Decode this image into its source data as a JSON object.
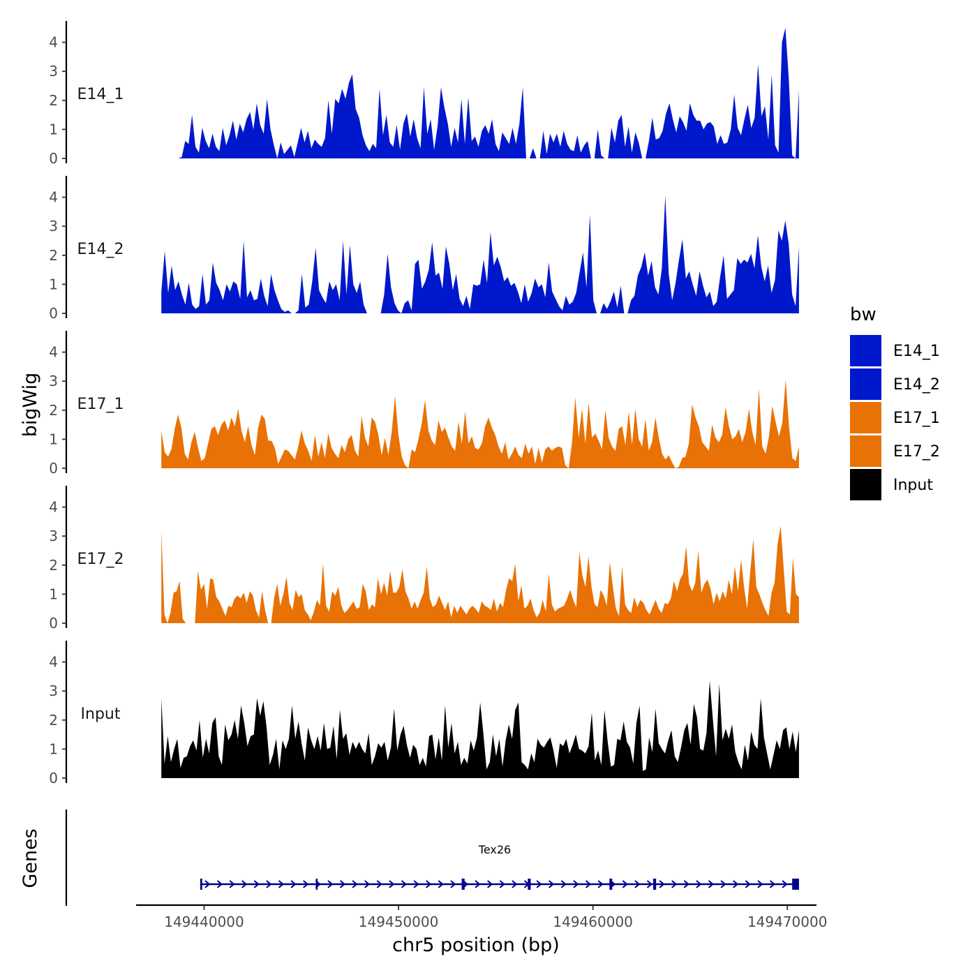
{
  "chart_data": {
    "type": "area",
    "title": "",
    "xlabel": "chr5 position (bp)",
    "ylabel": "bigWig",
    "genes_label": "Genes",
    "xlim": [
      149436500,
      149471500
    ],
    "data_range": [
      149437800,
      149470600
    ],
    "ylim": [
      0,
      4.6
    ],
    "x_ticks": [
      149440000,
      149450000,
      149460000,
      149470000
    ],
    "x_tick_labels": [
      "149440000",
      "149450000",
      "149460000",
      "149470000"
    ],
    "y_ticks": [
      0,
      1,
      2,
      3,
      4
    ],
    "y_tick_labels": [
      "0",
      "1",
      "2",
      "3",
      "4"
    ],
    "grid": false,
    "legend": {
      "title": "bw",
      "position": "right",
      "items": [
        {
          "label": "E14_1",
          "color": "#0018CC"
        },
        {
          "label": "E14_2",
          "color": "#0018CC"
        },
        {
          "label": "E17_1",
          "color": "#E87205"
        },
        {
          "label": "E17_2",
          "color": "#E87205"
        },
        {
          "label": "Input",
          "color": "#000000"
        }
      ]
    },
    "series": [
      {
        "name": "E14_1",
        "color": "#0018CC",
        "values": [
          0,
          0,
          0,
          0,
          0,
          0,
          0.05,
          0.6,
          0.5,
          1.5,
          0.4,
          0.2,
          1.05,
          0.6,
          0.35,
          0.85,
          0.4,
          0.25,
          1.05,
          0.45,
          0.8,
          1.3,
          0.65,
          1.2,
          0.9,
          1.35,
          1.6,
          1.0,
          1.9,
          1.15,
          0.85,
          2.05,
          1.0,
          0.45,
          0,
          0.55,
          0.15,
          0.3,
          0.45,
          0.05,
          0.55,
          1.05,
          0.55,
          0.95,
          0.35,
          0.65,
          0.5,
          0.4,
          0.7,
          2.0,
          0.85,
          2.05,
          1.9,
          2.4,
          2.05,
          2.6,
          2.9,
          1.7,
          1.4,
          0.8,
          0.45,
          0.25,
          0.5,
          0.35,
          2.4,
          0.8,
          1.5,
          0.55,
          0.4,
          1.15,
          0.3,
          1.2,
          1.55,
          0.75,
          1.35,
          0.7,
          0.35,
          2.45,
          0.85,
          1.35,
          0.3,
          1.1,
          2.45,
          1.75,
          1.2,
          0.4,
          1.05,
          0.55,
          2.05,
          0.5,
          2.1,
          0.6,
          0.75,
          0.4,
          0.95,
          1.15,
          0.85,
          1.35,
          0.5,
          0.25,
          0.9,
          0.7,
          0.5,
          1.05,
          0.5,
          1.2,
          2.45,
          0,
          0,
          0.35,
          0,
          0,
          0.95,
          0.15,
          0.85,
          0.55,
          0.85,
          0.4,
          0.95,
          0.5,
          0.3,
          0.25,
          0.8,
          0.2,
          0.45,
          0.6,
          0,
          0,
          1.0,
          0.1,
          0,
          0,
          1.05,
          0.55,
          1.3,
          1.5,
          0.4,
          1.1,
          0.2,
          0.9,
          0.55,
          0,
          0,
          0.6,
          1.4,
          0.65,
          0.7,
          0.95,
          1.55,
          1.9,
          1.35,
          0.9,
          1.45,
          1.25,
          0.95,
          1.9,
          1.5,
          1.3,
          1.3,
          1.0,
          1.2,
          1.25,
          1.1,
          0.5,
          0.8,
          0.5,
          0.55,
          1.0,
          2.2,
          1.05,
          0.8,
          1.35,
          1.85,
          1.05,
          1.4,
          3.25,
          1.45,
          1.8,
          0.65,
          2.9,
          0.45,
          0.2,
          4.0,
          4.5,
          2.75,
          0.1,
          0,
          2.35
        ]
      },
      {
        "name": "E14_2",
        "color": "#0018CC",
        "values": [
          0.75,
          2.15,
          0.7,
          1.65,
          0.8,
          1.1,
          0.65,
          0.3,
          1.05,
          0.3,
          0.15,
          0.25,
          1.35,
          0.3,
          0.45,
          1.75,
          1.05,
          0.8,
          0.45,
          1.0,
          0.75,
          1.1,
          1.0,
          0.5,
          2.5,
          0.55,
          0.8,
          0.45,
          0.5,
          1.2,
          0.6,
          0.25,
          1.35,
          0.8,
          0.45,
          0.15,
          0.05,
          0.1,
          0,
          0,
          0.1,
          1.35,
          0.2,
          0.3,
          1.1,
          2.25,
          0.8,
          0.55,
          0.35,
          1.1,
          0.8,
          1.0,
          0.45,
          2.5,
          0.65,
          2.35,
          1.0,
          0.7,
          1.1,
          0.3,
          0,
          0,
          0,
          0,
          0,
          0.65,
          2.05,
          0.9,
          0.35,
          0.1,
          0,
          0.35,
          0.45,
          0.1,
          1.7,
          1.85,
          0.85,
          1.1,
          1.5,
          2.45,
          1.3,
          1.4,
          0.85,
          2.3,
          1.7,
          0.8,
          1.35,
          0.5,
          0.25,
          0.6,
          0.15,
          1.0,
          0.95,
          1.0,
          1.85,
          1.05,
          2.8,
          1.65,
          1.95,
          1.6,
          1.1,
          1.25,
          0.95,
          1.05,
          0.75,
          0.35,
          1.0,
          0.4,
          0.7,
          1.2,
          0.9,
          1.0,
          0.55,
          1.75,
          0.75,
          0.5,
          0.25,
          0.1,
          0.6,
          0.3,
          0.4,
          0.7,
          1.4,
          2.1,
          0.9,
          3.4,
          0.45,
          0,
          0,
          0.35,
          0.15,
          0.4,
          0.75,
          0.2,
          0.95,
          0,
          0,
          0.45,
          0.6,
          1.3,
          1.6,
          2.1,
          1.3,
          1.8,
          0.9,
          0.65,
          1.55,
          4.05,
          1.35,
          0.45,
          1.05,
          1.85,
          2.55,
          1.2,
          1.45,
          1.0,
          0.6,
          1.45,
          0.95,
          0.55,
          0.75,
          0.25,
          0.4,
          1.25,
          2.0,
          0.5,
          0.65,
          0.8,
          1.9,
          1.7,
          1.85,
          1.75,
          2.05,
          1.55,
          2.7,
          1.6,
          1.1,
          1.65,
          0.7,
          1.15,
          2.85,
          2.5,
          3.2,
          2.4,
          0.65,
          0.25,
          2.3
        ]
      },
      {
        "name": "E17_1",
        "color": "#E87205",
        "values": [
          1.3,
          0.55,
          0.4,
          0.65,
          1.35,
          1.85,
          1.4,
          0.5,
          0.3,
          0.9,
          1.25,
          0.7,
          0.25,
          0.35,
          0.85,
          1.35,
          1.45,
          1.15,
          1.5,
          1.65,
          1.3,
          1.75,
          1.45,
          2.05,
          1.3,
          0.9,
          1.45,
          0.8,
          0.45,
          1.4,
          1.85,
          1.7,
          0.95,
          0.95,
          0.7,
          0.15,
          0.4,
          0.65,
          0.6,
          0.45,
          0.3,
          0.75,
          1.3,
          0.85,
          0.6,
          0.25,
          1.15,
          0.4,
          0.9,
          0.35,
          1.2,
          0.7,
          0.5,
          0.35,
          0.8,
          0.55,
          1.0,
          1.15,
          0.6,
          0.4,
          1.8,
          1.05,
          0.75,
          1.75,
          1.6,
          1.15,
          0.45,
          1.05,
          0.45,
          1.25,
          2.5,
          1.15,
          0.4,
          0.1,
          0,
          0.65,
          0.55,
          1.0,
          1.55,
          2.35,
          1.3,
          0.95,
          0.8,
          1.65,
          1.25,
          1.4,
          1.05,
          0.75,
          0.6,
          1.6,
          0.85,
          1.95,
          0.85,
          1.1,
          0.7,
          0.65,
          0.85,
          1.45,
          1.75,
          1.4,
          1.15,
          0.75,
          0.5,
          0.9,
          0.3,
          0.5,
          0.75,
          0.45,
          0.35,
          0.85,
          0.5,
          0.75,
          0.15,
          0.7,
          0.2,
          0.65,
          0.75,
          0.6,
          0.7,
          0.75,
          0.7,
          0.1,
          0,
          0.85,
          2.45,
          1.05,
          2.05,
          0.85,
          2.25,
          1.05,
          1.2,
          0.95,
          0.65,
          2.0,
          1.05,
          0.75,
          0.6,
          1.35,
          1.45,
          0.8,
          1.95,
          0.8,
          2.05,
          1.0,
          0.75,
          1.7,
          0.6,
          0.9,
          1.75,
          1.05,
          0.5,
          0.3,
          0.45,
          0.2,
          0,
          0.05,
          0.35,
          0.4,
          0.85,
          2.2,
          1.75,
          1.45,
          0.9,
          0.75,
          0.6,
          1.5,
          1.05,
          0.9,
          1.15,
          2.1,
          1.45,
          1.0,
          1.1,
          1.35,
          0.9,
          1.25,
          2.05,
          1.25,
          0.8,
          2.75,
          0.75,
          0.5,
          1.1,
          2.15,
          1.6,
          1.1,
          1.55,
          3.05,
          1.45,
          0.35,
          0.25,
          0.75
        ]
      },
      {
        "name": "E17_2",
        "color": "#E87205",
        "values": [
          3.2,
          0.3,
          0,
          0.35,
          1.05,
          1.1,
          1.45,
          0.15,
          0,
          0,
          0,
          0,
          1.8,
          1.15,
          1.35,
          0.5,
          1.55,
          1.5,
          0.9,
          0.75,
          0.5,
          0.25,
          0.6,
          0.55,
          0.85,
          0.95,
          0.85,
          1.05,
          0.7,
          1.1,
          0.95,
          0.45,
          0.2,
          1.1,
          0.45,
          0,
          0,
          0.9,
          1.35,
          0.6,
          1.0,
          1.6,
          0.7,
          0.45,
          1.15,
          0.9,
          1.0,
          0.45,
          0.3,
          0.1,
          0.4,
          0.8,
          0.6,
          2.05,
          0.6,
          0.4,
          1.1,
          0.95,
          1.25,
          0.6,
          0.35,
          0.45,
          0.6,
          0.75,
          0.5,
          0.55,
          1.35,
          1.1,
          0.45,
          0.65,
          0.55,
          1.55,
          1.0,
          1.4,
          0.95,
          1.8,
          1.05,
          1.05,
          1.25,
          1.85,
          1.1,
          0.85,
          0.5,
          0.75,
          0.5,
          0.8,
          1.05,
          1.95,
          0.85,
          0.55,
          0.65,
          0.95,
          0.7,
          0.45,
          0.75,
          0.2,
          0.6,
          0.35,
          0.6,
          0.45,
          0.3,
          0.5,
          0.6,
          0.5,
          0.35,
          0.75,
          0.6,
          0.55,
          0.45,
          0.85,
          0.4,
          0.7,
          0.55,
          1.15,
          1.55,
          1.45,
          2.05,
          0.75,
          1.3,
          0.5,
          0.6,
          0.85,
          0.45,
          0.2,
          0.35,
          0.8,
          0.4,
          1.7,
          0.65,
          0.4,
          0.5,
          0.55,
          0.6,
          0.85,
          1.15,
          0.8,
          0.55,
          2.45,
          1.65,
          1.25,
          2.3,
          1.25,
          0.65,
          0.55,
          1.15,
          0.95,
          0.6,
          2.1,
          1.25,
          0.5,
          0.25,
          1.95,
          0.65,
          0.45,
          0.35,
          0.9,
          0.55,
          0.8,
          0.7,
          0.45,
          0.3,
          0.55,
          0.8,
          0.5,
          0.35,
          0.7,
          0.65,
          0.85,
          1.45,
          1.1,
          1.5,
          1.7,
          2.65,
          1.35,
          1.1,
          1.4,
          2.5,
          1.05,
          1.35,
          1.5,
          1.2,
          0.65,
          1.05,
          0.75,
          1.1,
          0.85,
          1.5,
          1.0,
          1.95,
          1.1,
          2.2,
          1.25,
          0.5,
          1.75,
          2.9,
          1.25,
          1.0,
          0.7,
          0.45,
          0.25,
          1.05,
          1.4,
          2.75,
          3.35,
          1.85,
          0.4,
          0.3,
          2.25,
          1.0,
          0.9
        ]
      },
      {
        "name": "Input",
        "color": "#000000",
        "values": [
          2.75,
          0.5,
          1.45,
          0.55,
          1.0,
          1.35,
          0.35,
          0.7,
          0.75,
          1.1,
          1.3,
          0.95,
          2.0,
          0.7,
          1.35,
          0.85,
          1.9,
          2.1,
          0.75,
          0.45,
          1.85,
          1.3,
          1.5,
          2.0,
          1.35,
          2.5,
          1.9,
          1.1,
          1.45,
          1.5,
          2.75,
          2.15,
          2.65,
          1.75,
          0.45,
          0.8,
          1.35,
          0.3,
          1.3,
          1.0,
          1.35,
          2.5,
          1.35,
          1.95,
          1.2,
          0.6,
          1.75,
          1.3,
          1.0,
          1.45,
          0.95,
          1.9,
          1.0,
          1.05,
          1.8,
          0.65,
          2.35,
          1.35,
          1.55,
          0.8,
          1.25,
          1.0,
          1.25,
          1.0,
          0.85,
          1.55,
          0.45,
          0.75,
          1.2,
          1.05,
          1.25,
          0.6,
          1.05,
          2.4,
          0.95,
          1.5,
          1.8,
          1.15,
          0.7,
          1.15,
          1.0,
          0.45,
          0.7,
          0.4,
          1.45,
          1.5,
          0.65,
          1.4,
          0.6,
          2.5,
          1.05,
          1.9,
          0.85,
          1.25,
          0.45,
          0.7,
          0.5,
          1.3,
          0.95,
          1.4,
          2.6,
          1.55,
          0.3,
          0.55,
          1.5,
          0.75,
          1.35,
          0.4,
          1.3,
          1.85,
          1.35,
          2.35,
          2.6,
          0.55,
          0.45,
          0.3,
          0.85,
          0.55,
          1.35,
          1.15,
          1.05,
          1.25,
          1.4,
          0.95,
          0.35,
          1.2,
          1.1,
          1.35,
          0.85,
          1.15,
          1.5,
          1.0,
          0.95,
          0.85,
          1.1,
          2.25,
          0.6,
          0.95,
          0.45,
          2.35,
          1.25,
          0.4,
          0.45,
          1.35,
          1.3,
          1.95,
          1.25,
          1.05,
          0.5,
          1.9,
          2.5,
          0.25,
          0.3,
          1.4,
          0.9,
          2.4,
          1.2,
          1.0,
          0.85,
          1.3,
          1.65,
          0.75,
          0.55,
          1.05,
          1.65,
          1.9,
          1.15,
          2.55,
          2.1,
          1.0,
          0.95,
          1.55,
          3.35,
          2.0,
          0.75,
          3.25,
          1.3,
          1.7,
          1.35,
          1.85,
          0.9,
          0.55,
          0.3,
          1.15,
          0.6,
          1.6,
          1.15,
          1.0,
          2.75,
          1.4,
          0.85,
          0.3,
          0.8,
          1.3,
          1.0,
          1.65,
          1.75,
          1.0,
          1.6,
          0.9,
          1.65
        ]
      }
    ],
    "genes": [
      {
        "name": "Tex26",
        "start": 149439800,
        "end": 149470600,
        "strand": "+",
        "exons": [
          {
            "start": 149439800,
            "end": 149439900
          },
          {
            "start": 149445750,
            "end": 149445830
          },
          {
            "start": 149453250,
            "end": 149453400
          },
          {
            "start": 149456650,
            "end": 149456800
          },
          {
            "start": 149460850,
            "end": 149460990
          },
          {
            "start": 149463100,
            "end": 149463250
          },
          {
            "start": 149470250,
            "end": 149470600
          }
        ]
      }
    ]
  }
}
